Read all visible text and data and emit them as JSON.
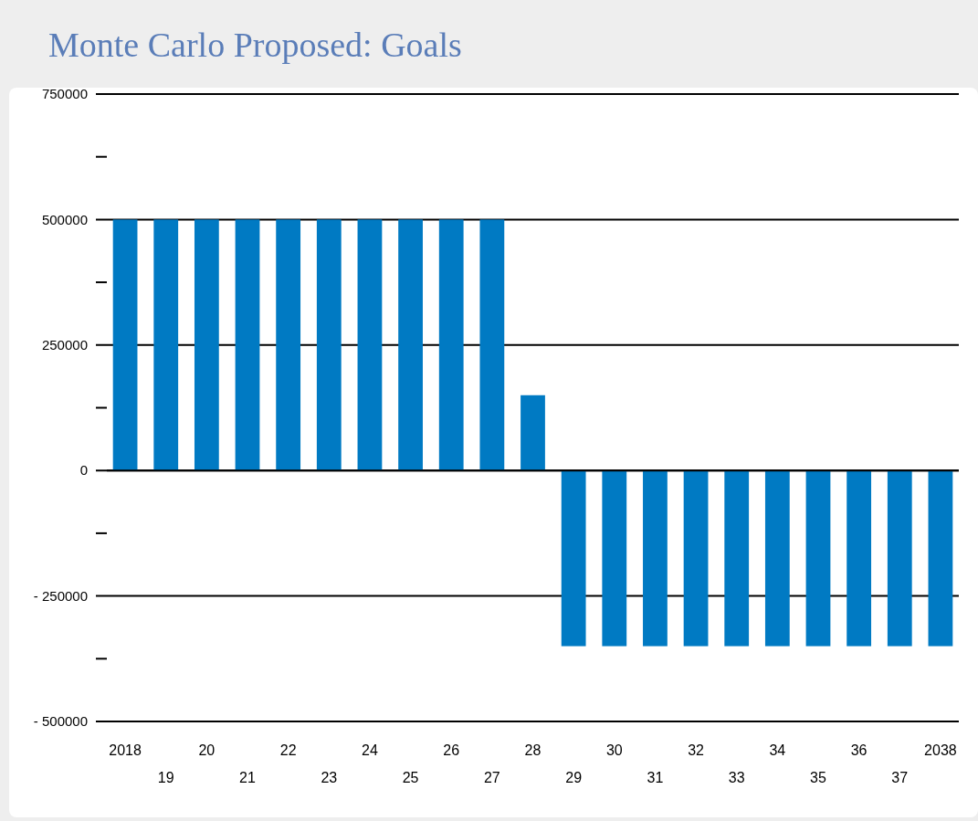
{
  "chart_data": {
    "type": "bar",
    "title": "Monte Carlo Proposed: Goals",
    "categories": [
      "2018",
      "19",
      "20",
      "21",
      "22",
      "23",
      "24",
      "25",
      "26",
      "27",
      "28",
      "29",
      "30",
      "31",
      "32",
      "33",
      "34",
      "35",
      "36",
      "37",
      "2038"
    ],
    "values": [
      500000,
      500000,
      500000,
      500000,
      500000,
      500000,
      500000,
      500000,
      500000,
      500000,
      150000,
      -350000,
      -350000,
      -350000,
      -350000,
      -350000,
      -350000,
      -350000,
      -350000,
      -350000,
      -350000
    ],
    "color": "#007ac3",
    "ylim": [
      -500000,
      750000
    ],
    "yticks": [
      {
        "value": -500000,
        "label": "- 500000"
      },
      {
        "value": -375000,
        "label": null
      },
      {
        "value": -250000,
        "label": "- 250000"
      },
      {
        "value": -125000,
        "label": null
      },
      0,
      {
        "value": 125000,
        "label": null
      },
      250000,
      {
        "value": 375000,
        "label": null
      },
      500000,
      {
        "value": 625000,
        "label": null
      },
      750000
    ],
    "grid": "y"
  }
}
